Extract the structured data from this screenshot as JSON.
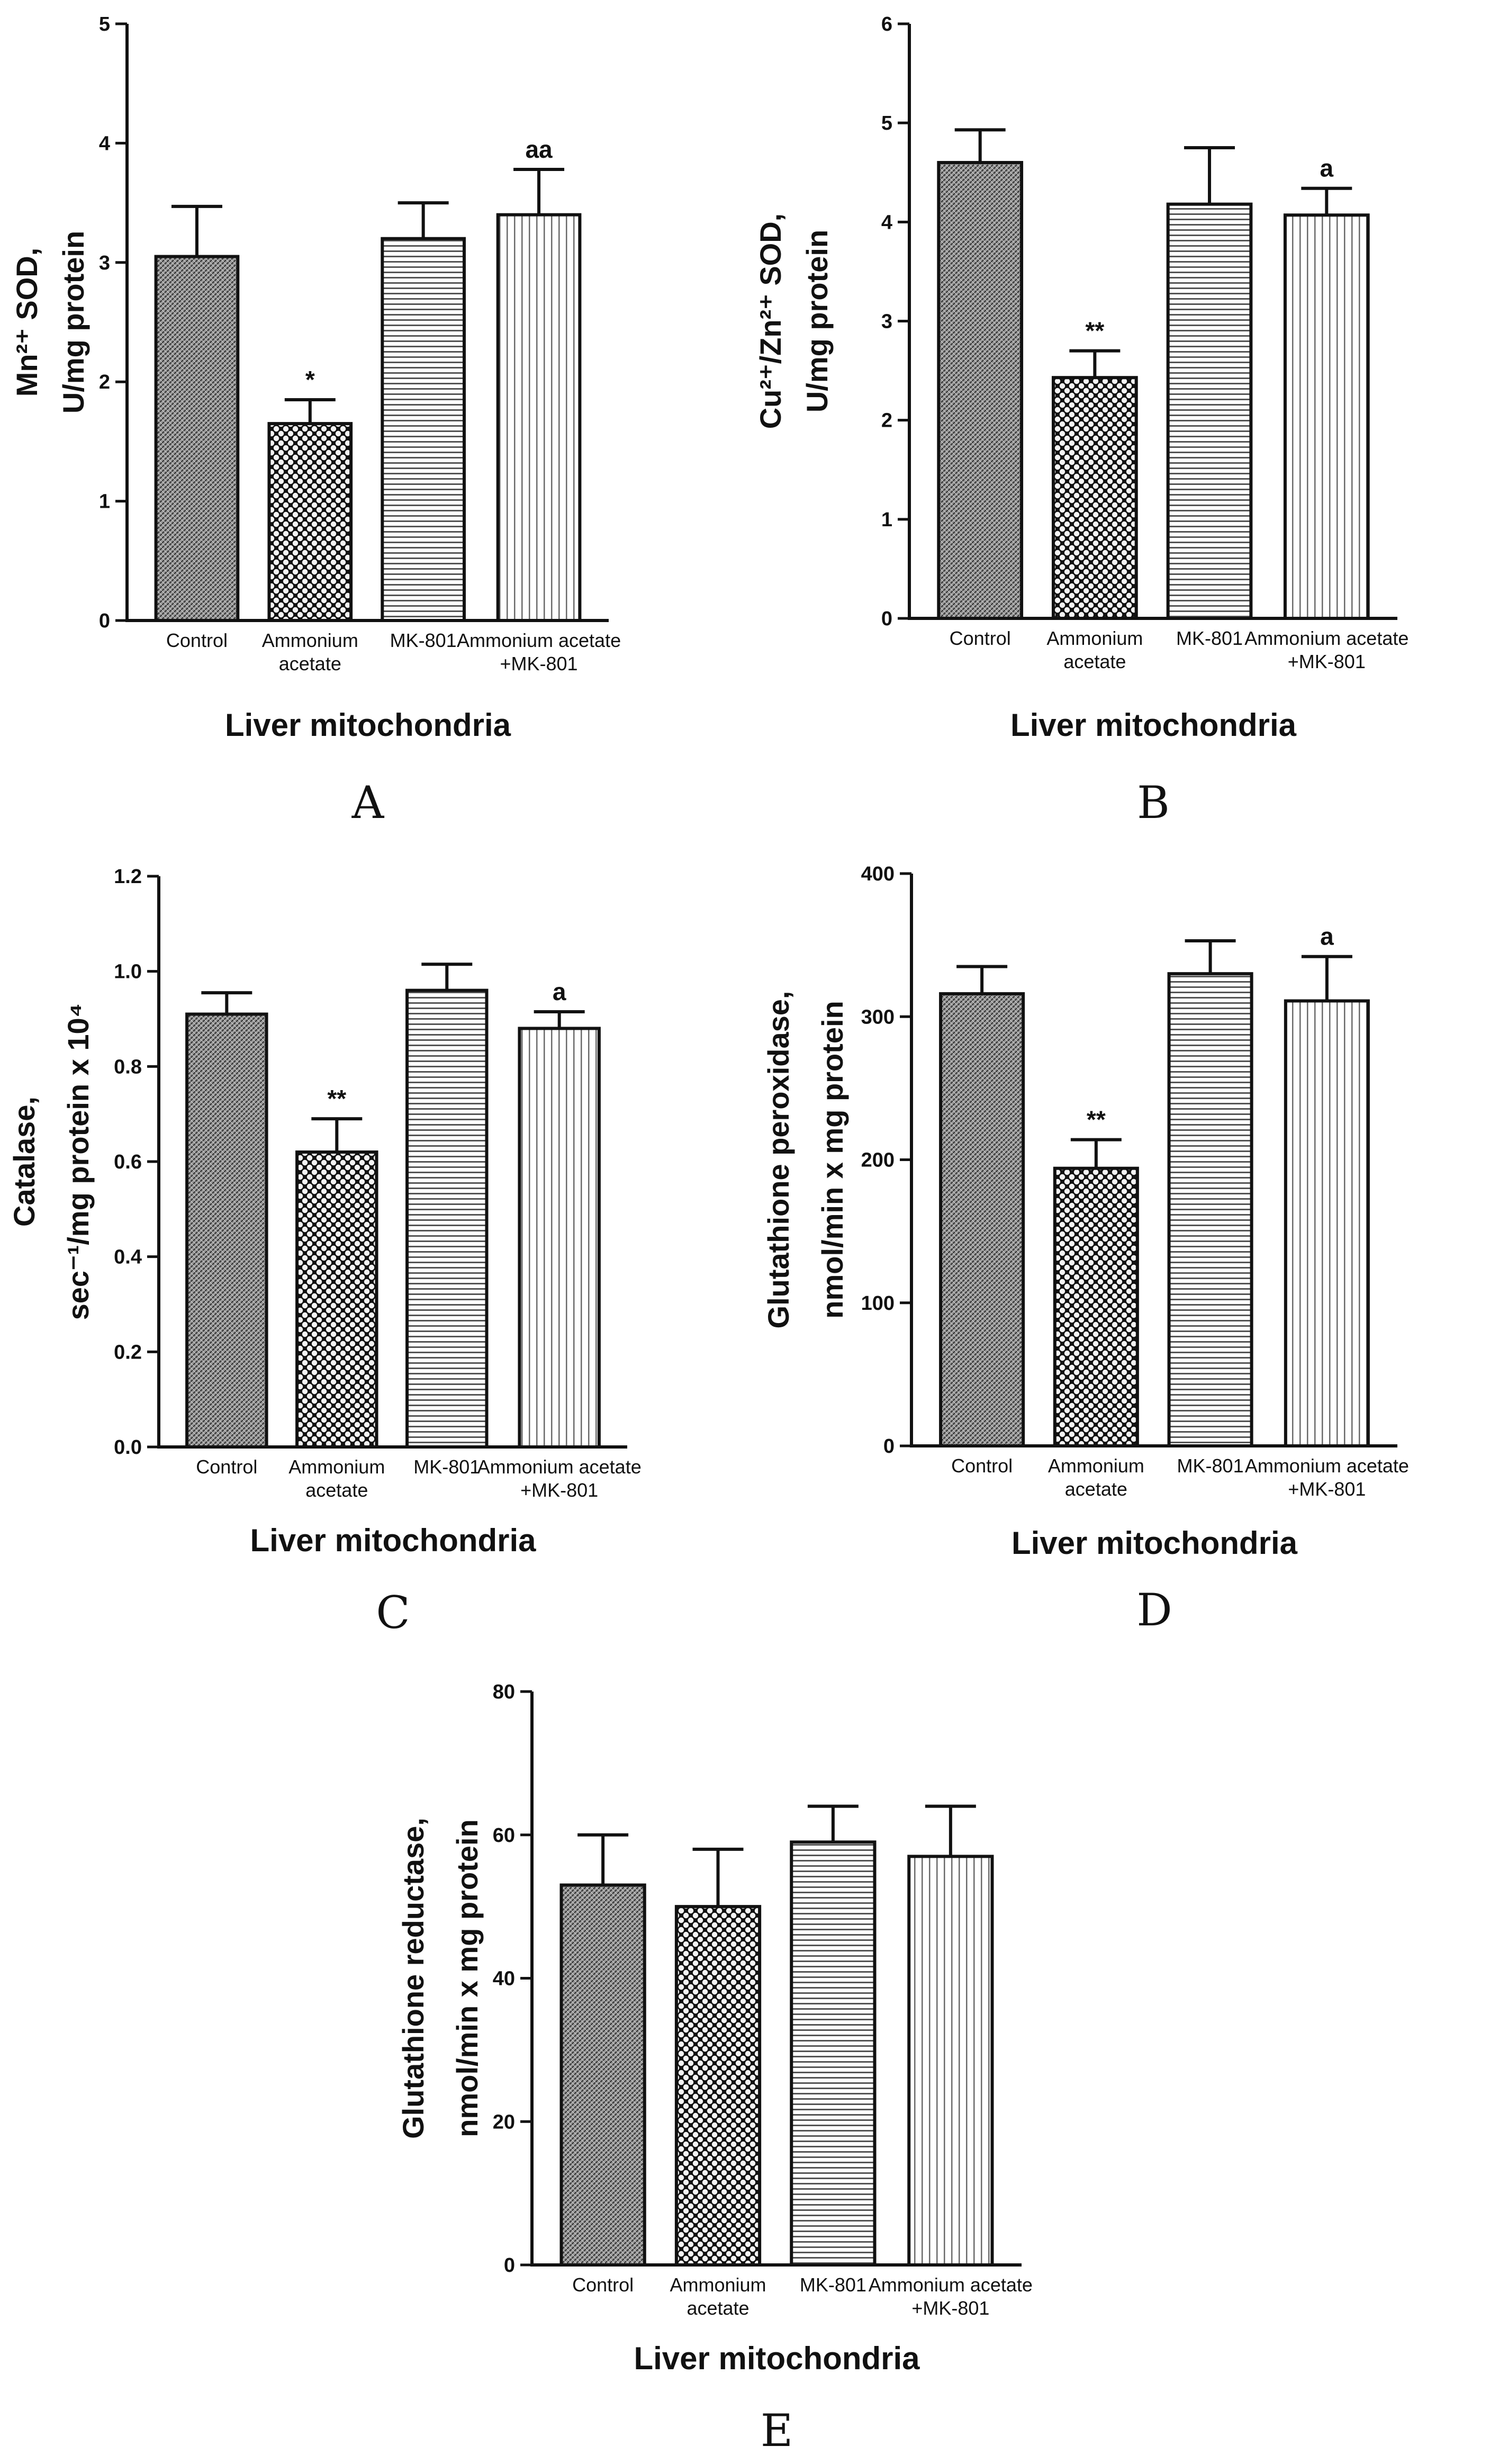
{
  "chart_data": [
    {
      "panel": "A",
      "type": "bar",
      "ylabel_lines": [
        "Mn²⁺ SOD,",
        "U/mg protein"
      ],
      "xlabel": "Liver mitochondria",
      "categories": [
        [
          "Control"
        ],
        [
          "Ammonium",
          "acetate"
        ],
        [
          "MK-801"
        ],
        [
          "Ammonium acetate",
          "+MK-801"
        ]
      ],
      "values": [
        3.05,
        1.65,
        3.2,
        3.4
      ],
      "errors": [
        0.42,
        0.2,
        0.3,
        0.38
      ],
      "significance": [
        "",
        "*",
        "",
        "aa"
      ],
      "ylim": [
        0,
        5
      ],
      "yticks": [
        "0",
        "1",
        "2",
        "3",
        "4",
        "5"
      ],
      "patterns": [
        "dense",
        "checker",
        "hlines",
        "vlines"
      ]
    },
    {
      "panel": "B",
      "type": "bar",
      "ylabel_lines": [
        "Cu²⁺/Zn²⁺ SOD,",
        "U/mg protein"
      ],
      "xlabel": "Liver mitochondria",
      "categories": [
        [
          "Control"
        ],
        [
          "Ammonium",
          "acetate"
        ],
        [
          "MK-801"
        ],
        [
          "Ammonium acetate",
          "+MK-801"
        ]
      ],
      "values": [
        4.6,
        2.43,
        4.18,
        4.07
      ],
      "errors": [
        0.33,
        0.27,
        0.57,
        0.27
      ],
      "significance": [
        "",
        "**",
        "",
        "a"
      ],
      "ylim": [
        0,
        6
      ],
      "yticks": [
        "0",
        "1",
        "2",
        "3",
        "4",
        "5",
        "6"
      ],
      "patterns": [
        "dense",
        "checker",
        "hlines",
        "vlines"
      ]
    },
    {
      "panel": "C",
      "type": "bar",
      "ylabel_lines": [
        "Catalase,",
        "sec⁻¹/mg protein x 10⁴"
      ],
      "xlabel": "Liver mitochondria",
      "categories": [
        [
          "Control"
        ],
        [
          "Ammonium",
          "acetate"
        ],
        [
          "MK-801"
        ],
        [
          "Ammonium acetate",
          "+MK-801"
        ]
      ],
      "values": [
        0.91,
        0.62,
        0.96,
        0.88
      ],
      "errors": [
        0.045,
        0.07,
        0.055,
        0.035
      ],
      "significance": [
        "",
        "**",
        "",
        "a"
      ],
      "ylim": [
        0,
        1.2
      ],
      "yticks": [
        "0.0",
        "0.2",
        "0.4",
        "0.6",
        "0.8",
        "1.0",
        "1.2"
      ],
      "patterns": [
        "dense",
        "checker",
        "hlines",
        "vlines"
      ]
    },
    {
      "panel": "D",
      "type": "bar",
      "ylabel_lines": [
        "Glutathione peroxidase,",
        "nmol/min x mg protein"
      ],
      "xlabel": "Liver mitochondria",
      "categories": [
        [
          "Control"
        ],
        [
          "Ammonium",
          "acetate"
        ],
        [
          "MK-801"
        ],
        [
          "Ammonium acetate",
          "+MK-801"
        ]
      ],
      "values": [
        316,
        194,
        330,
        311
      ],
      "errors": [
        19,
        20,
        23,
        31
      ],
      "significance": [
        "",
        "**",
        "",
        "a"
      ],
      "ylim": [
        0,
        400
      ],
      "yticks": [
        "0",
        "100",
        "200",
        "300",
        "400"
      ],
      "patterns": [
        "dense",
        "checker",
        "hlines",
        "vlines"
      ]
    },
    {
      "panel": "E",
      "type": "bar",
      "ylabel_lines": [
        "Glutathione reductase,",
        "nmol/min x mg protein"
      ],
      "xlabel": "Liver mitochondria",
      "categories": [
        [
          "Control"
        ],
        [
          "Ammonium",
          "acetate"
        ],
        [
          "MK-801"
        ],
        [
          "Ammonium acetate",
          "+MK-801"
        ]
      ],
      "values": [
        53,
        50,
        59,
        57
      ],
      "errors": [
        7,
        8,
        5,
        7
      ],
      "significance": [
        "",
        "",
        "",
        ""
      ],
      "ylim": [
        0,
        80
      ],
      "yticks": [
        "0",
        "20",
        "40",
        "60",
        "80"
      ],
      "patterns": [
        "dense",
        "checker",
        "hlines",
        "vlines"
      ]
    }
  ]
}
